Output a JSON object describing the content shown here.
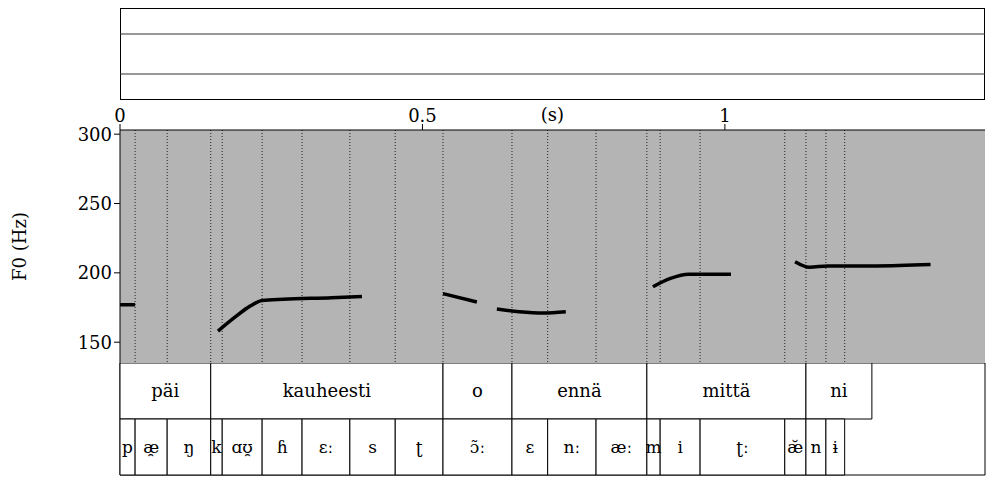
{
  "chart_data": {
    "type": "line",
    "y_label": "F0 (Hz)",
    "x_label": "(s)",
    "x": [
      0,
      0.025,
      0.09,
      0.162,
      0.19,
      0.215,
      0.235,
      0.27,
      0.35,
      0.4,
      0.47,
      0.534,
      0.59,
      0.61,
      0.623,
      0.66,
      0.7,
      0.737,
      0.81,
      0.881,
      0.91,
      0.94,
      1.01,
      1.06,
      1.116,
      1.14,
      1.17,
      1.25,
      1.34
    ],
    "values": [
      177,
      177,
      null,
      158,
      168,
      176,
      180,
      181,
      182,
      183,
      null,
      185,
      179,
      null,
      174,
      172,
      171,
      172,
      null,
      190,
      196,
      199,
      199,
      null,
      208,
      204,
      205,
      205,
      206
    ],
    "color": "#000000",
    "xlim": [
      0,
      1.43
    ],
    "xticks": [
      0,
      0.5,
      1
    ],
    "ylim": [
      135,
      303
    ],
    "yticks": [
      150,
      200,
      250,
      300
    ],
    "grid": false,
    "words": [
      {
        "label": "päi",
        "start": 0,
        "end": 0.15
      },
      {
        "label": "kauheesti",
        "start": 0.15,
        "end": 0.534
      },
      {
        "label": "o",
        "start": 0.534,
        "end": 0.648
      },
      {
        "label": "ennä",
        "start": 0.648,
        "end": 0.871
      },
      {
        "label": "mittä",
        "start": 0.871,
        "end": 1.134
      },
      {
        "label": "ni",
        "start": 1.134,
        "end": 1.243
      }
    ],
    "phones": [
      {
        "label": "p",
        "start": 0,
        "end": 0.025
      },
      {
        "label": "æ̯",
        "start": 0.025,
        "end": 0.078
      },
      {
        "label": "ŋ",
        "start": 0.078,
        "end": 0.15
      },
      {
        "label": "k",
        "start": 0.15,
        "end": 0.169
      },
      {
        "label": "ɑʊ̯",
        "start": 0.169,
        "end": 0.235
      },
      {
        "label": "ɦ",
        "start": 0.235,
        "end": 0.301
      },
      {
        "label": "ɛː",
        "start": 0.301,
        "end": 0.38
      },
      {
        "label": "s",
        "start": 0.38,
        "end": 0.455
      },
      {
        "label": "ʈ",
        "start": 0.455,
        "end": 0.534
      },
      {
        "label": "ɔ̃ː",
        "start": 0.534,
        "end": 0.648
      },
      {
        "label": "ɛ",
        "start": 0.648,
        "end": 0.707
      },
      {
        "label": "nː",
        "start": 0.707,
        "end": 0.787
      },
      {
        "label": "æː",
        "start": 0.787,
        "end": 0.871
      },
      {
        "label": "m",
        "start": 0.871,
        "end": 0.893
      },
      {
        "label": "i",
        "start": 0.893,
        "end": 0.959
      },
      {
        "label": "ʈː",
        "start": 0.959,
        "end": 1.099
      },
      {
        "label": "æ̆",
        "start": 1.099,
        "end": 1.134
      },
      {
        "label": "n",
        "start": 1.134,
        "end": 1.167
      },
      {
        "label": "ɨ",
        "start": 1.167,
        "end": 1.198
      }
    ]
  }
}
